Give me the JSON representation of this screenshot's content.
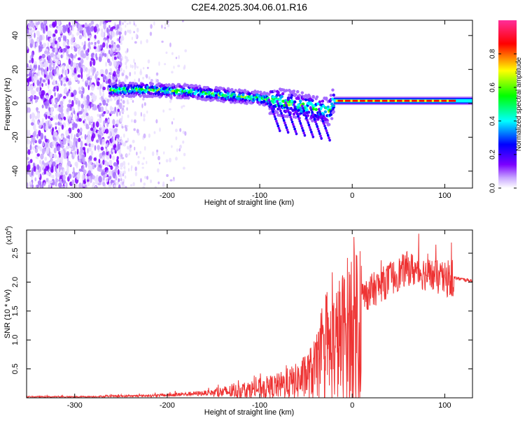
{
  "title": "C2E4.2025.304.06.01.R16",
  "chart_data": [
    {
      "type": "heatmap",
      "title": "C2E4.2025.304.06.01.R16",
      "xlabel": "Height of straight line (km)",
      "ylabel": "Frequency (Hz)",
      "xlim": [
        -352,
        130
      ],
      "ylim": [
        -50,
        49
      ],
      "xticks": [
        -300,
        -200,
        -100,
        0,
        100
      ],
      "xtick_labels": [
        "-300",
        "-200",
        "-100",
        "0",
        "100"
      ],
      "yticks": [
        -40,
        -20,
        0,
        20,
        40
      ],
      "ytick_labels": [
        "-40",
        "-20",
        "0",
        "20",
        "40"
      ],
      "ridge": {
        "description": "dominant spectral line frequency vs height",
        "x": [
          -260,
          -220,
          -180,
          -140,
          -100,
          -70,
          -40,
          -25,
          -20,
          0,
          50,
          100,
          130
        ],
        "y": [
          8,
          8,
          7,
          5,
          3,
          0,
          -3,
          -5,
          1.5,
          1.5,
          1.5,
          1.5,
          1.5
        ]
      },
      "noise_region_x": [
        -352,
        -250
      ],
      "colorbar": {
        "label": "Normalized spectral amplitude",
        "range": [
          0,
          1
        ],
        "ticks": [
          0.0,
          0.2,
          0.4,
          0.6,
          0.8
        ],
        "tick_labels": [
          "0.0",
          "0.2",
          "0.4",
          "0.6",
          "0.8"
        ],
        "colors": [
          "#ffffff",
          "#7b00ff",
          "#0000ff",
          "#00ffff",
          "#00ff00",
          "#ffff00",
          "#ff0000",
          "#ff00ff"
        ]
      }
    },
    {
      "type": "line",
      "xlabel": "Height of straight line (km)",
      "ylabel": "SNR (10 * v/v)",
      "y_multiplier": "(x10",
      "y_multiplier_exp": "4",
      "y_multiplier_close": ")",
      "xlim": [
        -352,
        130
      ],
      "ylim": [
        0,
        2.9
      ],
      "xticks": [
        -300,
        -200,
        -100,
        0,
        100
      ],
      "xtick_labels": [
        "-300",
        "-200",
        "-100",
        "0",
        "100"
      ],
      "yticks": [
        0.5,
        1.0,
        1.5,
        2.0,
        2.5
      ],
      "ytick_labels": [
        "0.5",
        "1.0",
        "1.5",
        "2.0",
        "2.5"
      ],
      "series": [
        {
          "name": "SNR",
          "color": "#ee3333",
          "x": [
            -352,
            -300,
            -250,
            -200,
            -150,
            -120,
            -100,
            -80,
            -60,
            -50,
            -40,
            -30,
            -20,
            -10,
            0,
            10,
            20,
            30,
            40,
            50,
            60,
            70,
            80,
            90,
            100,
            110,
            120,
            130
          ],
          "y": [
            0.02,
            0.02,
            0.03,
            0.05,
            0.1,
            0.15,
            0.2,
            0.25,
            0.35,
            0.45,
            0.6,
            0.85,
            1.1,
            1.3,
            1.6,
            1.8,
            1.9,
            2.0,
            2.1,
            2.2,
            2.3,
            2.25,
            2.2,
            2.15,
            2.1,
            2.08,
            2.05,
            2.03
          ]
        }
      ]
    }
  ],
  "colors": {
    "line": "#ee3333",
    "axis": "#000000"
  }
}
